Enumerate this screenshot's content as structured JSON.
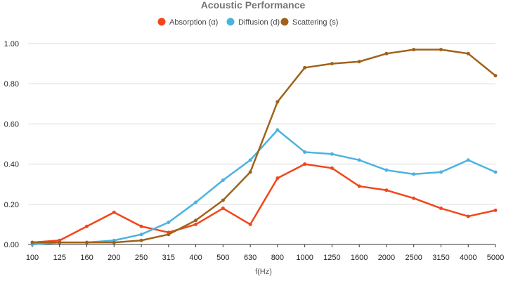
{
  "chart_data": {
    "type": "line",
    "title": "Acoustic Performance",
    "xlabel": "f(Hz)",
    "ylabel": "",
    "ylim": [
      0,
      1.0
    ],
    "yticks": [
      "0.00",
      "0.20",
      "0.40",
      "0.60",
      "0.80",
      "1.00"
    ],
    "grid": true,
    "legend_position": "top",
    "categories": [
      "100",
      "125",
      "160",
      "200",
      "250",
      "315",
      "400",
      "500",
      "630",
      "800",
      "1000",
      "1250",
      "1600",
      "2000",
      "2500",
      "3150",
      "4000",
      "5000"
    ],
    "series": [
      {
        "name": "Absorption (α)",
        "color": "#f2461b",
        "values": [
          0.01,
          0.02,
          0.09,
          0.16,
          0.09,
          0.06,
          0.1,
          0.18,
          0.1,
          0.33,
          0.4,
          0.38,
          0.29,
          0.27,
          0.23,
          0.18,
          0.14,
          0.17
        ]
      },
      {
        "name": "Diffusion (d)",
        "color": "#4bb3e0",
        "values": [
          0.0,
          0.01,
          0.01,
          0.02,
          0.05,
          0.11,
          0.21,
          0.32,
          0.42,
          0.57,
          0.46,
          0.45,
          0.42,
          0.37,
          0.35,
          0.36,
          0.42,
          0.36
        ]
      },
      {
        "name": "Scattering (s)",
        "color": "#a0621b",
        "values": [
          0.01,
          0.01,
          0.01,
          0.01,
          0.02,
          0.05,
          0.12,
          0.22,
          0.36,
          0.71,
          0.88,
          0.9,
          0.91,
          0.95,
          0.97,
          0.97,
          0.95,
          0.84
        ]
      }
    ]
  }
}
